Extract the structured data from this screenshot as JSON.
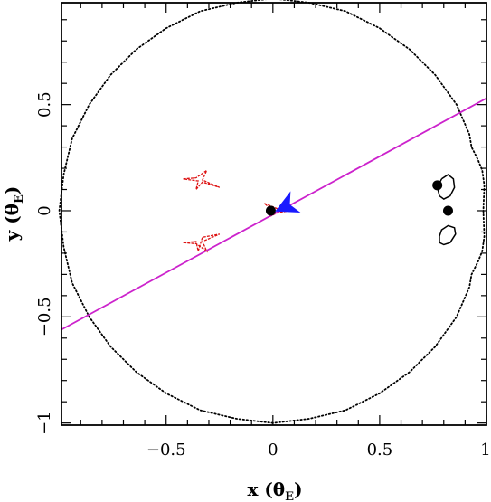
{
  "chart_data": {
    "type": "scatter",
    "xlabel": "x (θ_E)",
    "ylabel": "y (θ_E)",
    "xlabel_parts": {
      "main": "x (θ",
      "sub": "E",
      "close": ")"
    },
    "ylabel_parts": {
      "main": "y (θ",
      "sub": "E",
      "close": ")"
    },
    "xlim": [
      -0.99,
      1.0
    ],
    "ylim": [
      -1.01,
      0.98
    ],
    "xticks_labeled": [
      {
        "value": -0.5,
        "label": "−0.5"
      },
      {
        "value": 0,
        "label": "0"
      },
      {
        "value": 0.5,
        "label": "0.5"
      },
      {
        "value": 1,
        "label": "1"
      }
    ],
    "yticks_labeled": [
      {
        "value": -1,
        "label": "−1"
      },
      {
        "value": -0.5,
        "label": "−0.5"
      },
      {
        "value": 0,
        "label": "0"
      },
      {
        "value": 0.5,
        "label": "0.5"
      }
    ],
    "minor_tick_step": 0.1,
    "grid": false,
    "lens_positions": [
      {
        "x": -0.01,
        "y": 0.0
      },
      {
        "x": 0.77,
        "y": 0.12
      },
      {
        "x": 0.82,
        "y": 0.0
      }
    ],
    "source_trajectory": {
      "color": "#cc22cc",
      "points": [
        {
          "x": -0.99,
          "y": -0.56
        },
        {
          "x": 1.0,
          "y": 0.53
        }
      ]
    },
    "source_marker": {
      "x": 0.06,
      "y": 0.02,
      "color": "#1a1aff"
    },
    "critical_curve": {
      "color": "#000000",
      "style": "dotted",
      "points": [
        [
          0.0,
          -1.0
        ],
        [
          -0.17,
          -0.98
        ],
        [
          -0.34,
          -0.94
        ],
        [
          -0.5,
          -0.86
        ],
        [
          -0.64,
          -0.76
        ],
        [
          -0.76,
          -0.64
        ],
        [
          -0.86,
          -0.5
        ],
        [
          -0.94,
          -0.34
        ],
        [
          -0.98,
          -0.17
        ],
        [
          -1.0,
          0.0
        ],
        [
          -0.98,
          0.17
        ],
        [
          -0.94,
          0.34
        ],
        [
          -0.86,
          0.5
        ],
        [
          -0.76,
          0.64
        ],
        [
          -0.64,
          0.76
        ],
        [
          -0.5,
          0.86
        ],
        [
          -0.34,
          0.94
        ],
        [
          -0.17,
          0.98
        ],
        [
          0.0,
          1.0
        ],
        [
          0.17,
          0.98
        ],
        [
          0.34,
          0.94
        ],
        [
          0.5,
          0.86
        ],
        [
          0.64,
          0.76
        ],
        [
          0.76,
          0.64
        ],
        [
          0.86,
          0.5
        ],
        [
          0.92,
          0.36
        ],
        [
          0.93,
          0.3
        ],
        [
          0.96,
          0.24
        ],
        [
          0.98,
          0.19
        ],
        [
          0.99,
          0.12
        ],
        [
          0.985,
          0.0
        ],
        [
          0.99,
          -0.12
        ],
        [
          0.98,
          -0.19
        ],
        [
          0.96,
          -0.24
        ],
        [
          0.93,
          -0.3
        ],
        [
          0.92,
          -0.36
        ],
        [
          0.86,
          -0.5
        ],
        [
          0.76,
          -0.64
        ],
        [
          0.64,
          -0.76
        ],
        [
          0.5,
          -0.86
        ],
        [
          0.34,
          -0.94
        ],
        [
          0.17,
          -0.98
        ],
        [
          0.0,
          -1.0
        ]
      ]
    },
    "small_critical_curves": [
      {
        "color": "#000000",
        "points": [
          [
            0.79,
            0.15
          ],
          [
            0.82,
            0.17
          ],
          [
            0.845,
            0.15
          ],
          [
            0.85,
            0.11
          ],
          [
            0.83,
            0.07
          ],
          [
            0.8,
            0.055
          ],
          [
            0.78,
            0.07
          ],
          [
            0.77,
            0.11
          ],
          [
            0.79,
            0.15
          ]
        ]
      },
      {
        "color": "#000000",
        "points": [
          [
            0.78,
            -0.12
          ],
          [
            0.79,
            -0.09
          ],
          [
            0.82,
            -0.07
          ],
          [
            0.85,
            -0.08
          ],
          [
            0.855,
            -0.11
          ],
          [
            0.83,
            -0.15
          ],
          [
            0.8,
            -0.16
          ],
          [
            0.78,
            -0.15
          ],
          [
            0.78,
            -0.12
          ]
        ]
      }
    ],
    "caustics": {
      "color": "#dd1111",
      "curves": [
        {
          "points": [
            [
              -0.42,
              0.15
            ],
            [
              -0.36,
              0.155
            ],
            [
              -0.31,
              0.19
            ],
            [
              -0.33,
              0.145
            ],
            [
              -0.25,
              0.11
            ],
            [
              -0.33,
              0.135
            ],
            [
              -0.36,
              0.1
            ],
            [
              -0.35,
              0.14
            ],
            [
              -0.42,
              0.15
            ]
          ]
        },
        {
          "points": [
            [
              -0.42,
              -0.15
            ],
            [
              -0.36,
              -0.145
            ],
            [
              -0.35,
              -0.19
            ],
            [
              -0.33,
              -0.125
            ],
            [
              -0.25,
              -0.11
            ],
            [
              -0.33,
              -0.145
            ],
            [
              -0.31,
              -0.19
            ],
            [
              -0.36,
              -0.155
            ],
            [
              -0.42,
              -0.15
            ]
          ]
        },
        {
          "points": [
            [
              -0.04,
              0.035
            ],
            [
              0.02,
              0.01
            ],
            [
              0.08,
              0.0
            ],
            [
              0.02,
              -0.01
            ],
            [
              -0.02,
              -0.03
            ],
            [
              0.0,
              0.0
            ],
            [
              -0.04,
              0.035
            ]
          ]
        }
      ]
    }
  }
}
